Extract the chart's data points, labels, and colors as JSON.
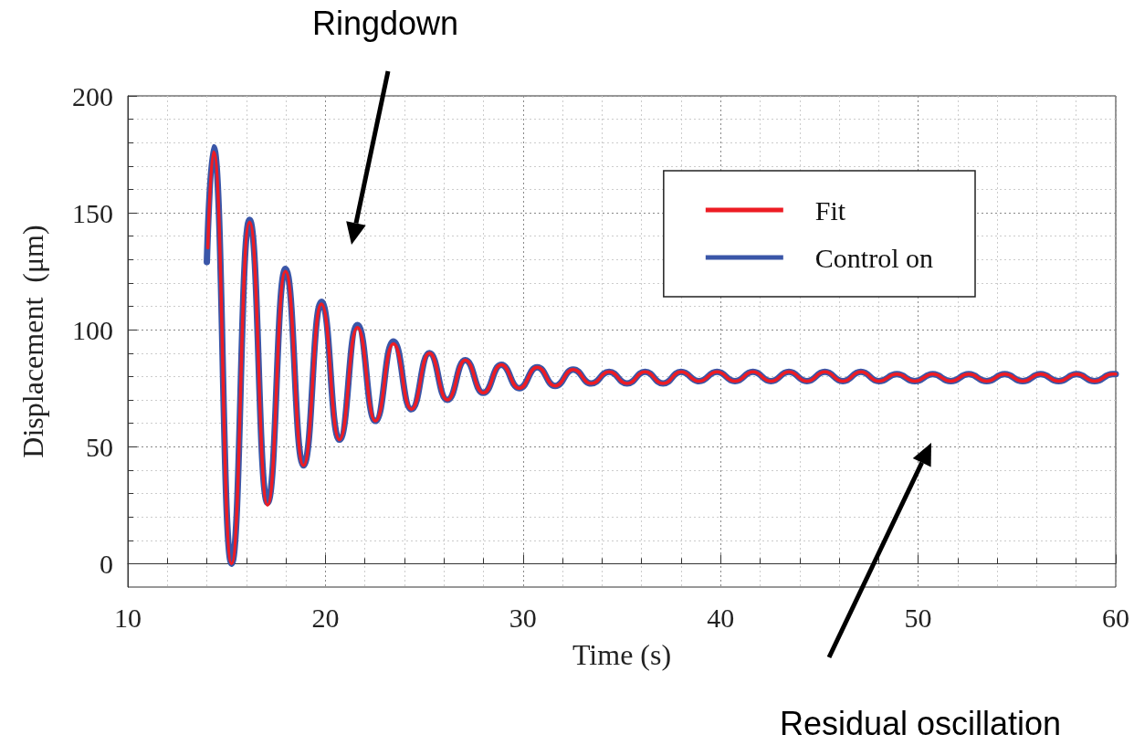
{
  "chart_data": {
    "type": "line",
    "xlabel": "Time (s)",
    "ylabel": "Displacement  (μm)",
    "xlim": [
      10,
      60
    ],
    "xticks": [
      10,
      20,
      30,
      40,
      50,
      60
    ],
    "ylim": [
      -10,
      200
    ],
    "yticks": [
      0,
      50,
      100,
      150,
      200
    ],
    "grid": true,
    "legend": "top right",
    "marker": "none",
    "line_style": "solid",
    "annotations": [
      "Ringdown",
      "Residual oscillation"
    ],
    "series": [
      {
        "name": "Fit",
        "color": "#ed1c24",
        "x": [
          14.05,
          14.34,
          15.25,
          16.16,
          17.07,
          17.98,
          18.89,
          19.8,
          20.71,
          21.62,
          22.53,
          23.44,
          24.35,
          25.26,
          26.17,
          27.08,
          27.99,
          28.9,
          29.81,
          30.72,
          31.63,
          32.54,
          33.45,
          34.36,
          35.27,
          36.18,
          37.09,
          38.0,
          38.91,
          39.82,
          40.73,
          41.64,
          42.55,
          43.46,
          44.37,
          45.28,
          46.19,
          47.1,
          48.01,
          48.92,
          49.83,
          50.74,
          51.65,
          52.56,
          53.47,
          54.38,
          55.29,
          56.2,
          57.11,
          58.02,
          58.93,
          59.84,
          60.0
        ],
        "values": [
          135,
          176,
          0,
          146,
          25,
          125,
          42,
          111,
          53,
          101,
          61,
          94,
          66,
          90,
          70,
          87,
          73,
          85,
          75,
          84,
          76,
          83,
          77,
          82,
          77,
          82,
          77,
          82,
          78,
          82,
          78,
          82,
          78,
          82,
          78,
          82,
          78,
          82,
          78,
          81,
          78,
          81,
          78,
          81,
          78,
          81,
          78,
          81,
          78,
          81,
          78,
          81,
          81
        ]
      },
      {
        "name": "Control on",
        "color": "#3a56a8",
        "x": [
          14.0,
          14.34,
          15.25,
          16.16,
          17.07,
          17.98,
          18.89,
          19.8,
          20.71,
          21.62,
          22.53,
          23.44,
          24.35,
          25.26,
          26.17,
          27.08,
          27.99,
          28.9,
          29.81,
          30.72,
          31.63,
          32.54,
          33.45,
          34.36,
          35.27,
          36.18,
          37.09,
          38.0,
          38.91,
          39.82,
          40.73,
          41.64,
          42.55,
          43.46,
          44.37,
          45.28,
          46.19,
          47.1,
          48.01,
          48.92,
          49.83,
          50.74,
          51.65,
          52.56,
          53.47,
          54.38,
          55.29,
          56.2,
          57.11,
          58.02,
          58.93,
          59.84,
          60.0
        ],
        "values": [
          129,
          178,
          0,
          147,
          26,
          126,
          42,
          112,
          53,
          102,
          61,
          95,
          66,
          90,
          70,
          87,
          73,
          85,
          75,
          84,
          76,
          83,
          77,
          82,
          77,
          82,
          77,
          82,
          78,
          82,
          78,
          82,
          78,
          82,
          78,
          82,
          78,
          82,
          78,
          81,
          78,
          81,
          78,
          81,
          78,
          81,
          78,
          81,
          78,
          81,
          78,
          81,
          81
        ]
      }
    ]
  }
}
